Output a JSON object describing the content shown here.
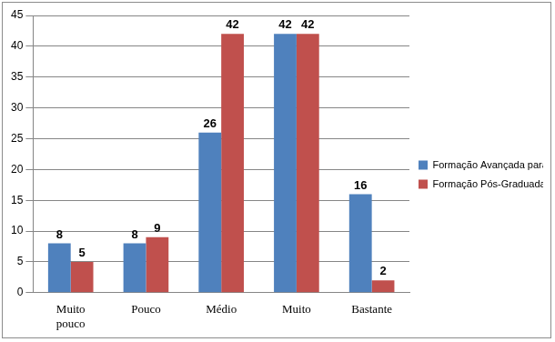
{
  "chart_data": {
    "type": "bar",
    "categories": [
      "Muito pouco",
      "Pouco",
      "Médio",
      "Muito",
      "Bastante"
    ],
    "series": [
      {
        "name": "Formação Avançada para Auditores",
        "color": "#4f81bd",
        "values": [
          8,
          8,
          26,
          42,
          16
        ]
      },
      {
        "name": "Formação Pós-Graduada",
        "color": "#c0504d",
        "values": [
          5,
          9,
          42,
          42,
          2
        ]
      }
    ],
    "ylim": [
      0,
      45
    ],
    "yticks": [
      0,
      5,
      10,
      15,
      20,
      25,
      30,
      35,
      40,
      45
    ],
    "grid": true,
    "legend": "right",
    "data_labels": true
  }
}
